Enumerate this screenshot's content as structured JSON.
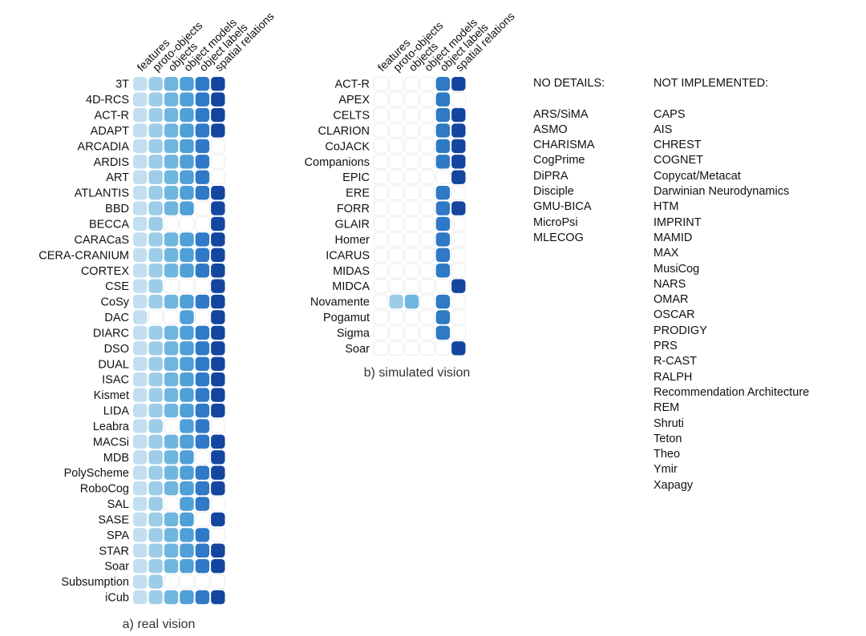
{
  "chart_data": [
    {
      "type": "heatmap",
      "caption": "a) real vision",
      "columns": [
        "features",
        "proto-objects",
        "objects",
        "object models",
        "object labels",
        "spatial relations"
      ],
      "rows": [
        {
          "label": "3T",
          "values": [
            1,
            1,
            1,
            1,
            1,
            1
          ]
        },
        {
          "label": "4D-RCS",
          "values": [
            1,
            1,
            1,
            1,
            1,
            1
          ]
        },
        {
          "label": "ACT-R",
          "values": [
            1,
            1,
            1,
            1,
            1,
            1
          ]
        },
        {
          "label": "ADAPT",
          "values": [
            1,
            1,
            1,
            1,
            1,
            1
          ]
        },
        {
          "label": "ARCADIA",
          "values": [
            1,
            1,
            1,
            1,
            1,
            0
          ]
        },
        {
          "label": "ARDIS",
          "values": [
            1,
            1,
            1,
            1,
            1,
            0
          ]
        },
        {
          "label": "ART",
          "values": [
            1,
            1,
            1,
            1,
            1,
            0
          ]
        },
        {
          "label": "ATLANTIS",
          "values": [
            1,
            1,
            1,
            1,
            1,
            1
          ]
        },
        {
          "label": "BBD",
          "values": [
            1,
            1,
            1,
            1,
            0,
            1
          ]
        },
        {
          "label": "BECCA",
          "values": [
            1,
            1,
            0,
            0,
            0,
            1
          ]
        },
        {
          "label": "CARACaS",
          "values": [
            1,
            1,
            1,
            1,
            1,
            1
          ]
        },
        {
          "label": "CERA-CRANIUM",
          "values": [
            1,
            1,
            1,
            1,
            1,
            1
          ]
        },
        {
          "label": "CORTEX",
          "values": [
            1,
            1,
            1,
            1,
            1,
            1
          ]
        },
        {
          "label": "CSE",
          "values": [
            1,
            1,
            0,
            0,
            0,
            1
          ]
        },
        {
          "label": "CoSy",
          "values": [
            1,
            1,
            1,
            1,
            1,
            1
          ]
        },
        {
          "label": "DAC",
          "values": [
            1,
            0,
            0,
            1,
            0,
            1
          ]
        },
        {
          "label": "DIARC",
          "values": [
            1,
            1,
            1,
            1,
            1,
            1
          ]
        },
        {
          "label": "DSO",
          "values": [
            1,
            1,
            1,
            1,
            1,
            1
          ]
        },
        {
          "label": "DUAL",
          "values": [
            1,
            1,
            1,
            1,
            1,
            1
          ]
        },
        {
          "label": "ISAC",
          "values": [
            1,
            1,
            1,
            1,
            1,
            1
          ]
        },
        {
          "label": "Kismet",
          "values": [
            1,
            1,
            1,
            1,
            1,
            1
          ]
        },
        {
          "label": "LIDA",
          "values": [
            1,
            1,
            1,
            1,
            1,
            1
          ]
        },
        {
          "label": "Leabra",
          "values": [
            1,
            1,
            0,
            1,
            1,
            0
          ]
        },
        {
          "label": "MACSi",
          "values": [
            1,
            1,
            1,
            1,
            1,
            1
          ]
        },
        {
          "label": "MDB",
          "values": [
            1,
            1,
            1,
            1,
            0,
            1
          ]
        },
        {
          "label": "PolyScheme",
          "values": [
            1,
            1,
            1,
            1,
            1,
            1
          ]
        },
        {
          "label": "RoboCog",
          "values": [
            1,
            1,
            1,
            1,
            1,
            1
          ]
        },
        {
          "label": "SAL",
          "values": [
            1,
            1,
            0,
            1,
            1,
            0
          ]
        },
        {
          "label": "SASE",
          "values": [
            1,
            1,
            1,
            1,
            0,
            1
          ]
        },
        {
          "label": "SPA",
          "values": [
            1,
            1,
            1,
            1,
            1,
            0
          ]
        },
        {
          "label": "STAR",
          "values": [
            1,
            1,
            1,
            1,
            1,
            1
          ]
        },
        {
          "label": "Soar",
          "values": [
            1,
            1,
            1,
            1,
            1,
            1
          ]
        },
        {
          "label": "Subsumption",
          "values": [
            1,
            1,
            0,
            0,
            0,
            0
          ]
        },
        {
          "label": "iCub",
          "values": [
            1,
            1,
            1,
            1,
            1,
            1
          ]
        }
      ]
    },
    {
      "type": "heatmap",
      "caption": "b) simulated vision",
      "columns": [
        "features",
        "proto-objects",
        "objects",
        "object models",
        "object labels",
        "spatial relations"
      ],
      "rows": [
        {
          "label": "ACT-R",
          "values": [
            0,
            0,
            0,
            0,
            1,
            1
          ]
        },
        {
          "label": "APEX",
          "values": [
            0,
            0,
            0,
            0,
            1,
            0
          ]
        },
        {
          "label": "CELTS",
          "values": [
            0,
            0,
            0,
            0,
            1,
            1
          ]
        },
        {
          "label": "CLARION",
          "values": [
            0,
            0,
            0,
            0,
            1,
            1
          ]
        },
        {
          "label": "CoJACK",
          "values": [
            0,
            0,
            0,
            0,
            1,
            1
          ]
        },
        {
          "label": "Companions",
          "values": [
            0,
            0,
            0,
            0,
            1,
            1
          ]
        },
        {
          "label": "EPIC",
          "values": [
            0,
            0,
            0,
            0,
            0,
            1
          ]
        },
        {
          "label": "ERE",
          "values": [
            0,
            0,
            0,
            0,
            1,
            0
          ]
        },
        {
          "label": "FORR",
          "values": [
            0,
            0,
            0,
            0,
            1,
            1
          ]
        },
        {
          "label": "GLAIR",
          "values": [
            0,
            0,
            0,
            0,
            1,
            0
          ]
        },
        {
          "label": "Homer",
          "values": [
            0,
            0,
            0,
            0,
            1,
            0
          ]
        },
        {
          "label": "ICARUS",
          "values": [
            0,
            0,
            0,
            0,
            1,
            0
          ]
        },
        {
          "label": "MIDAS",
          "values": [
            0,
            0,
            0,
            0,
            1,
            0
          ]
        },
        {
          "label": "MIDCA",
          "values": [
            0,
            0,
            0,
            0,
            0,
            1
          ]
        },
        {
          "label": "Novamente",
          "values": [
            0,
            1,
            1,
            0,
            1,
            0
          ]
        },
        {
          "label": "Pogamut",
          "values": [
            0,
            0,
            0,
            0,
            1,
            0
          ]
        },
        {
          "label": "Sigma",
          "values": [
            0,
            0,
            0,
            0,
            1,
            0
          ]
        },
        {
          "label": "Soar",
          "values": [
            0,
            0,
            0,
            0,
            0,
            1
          ]
        }
      ]
    }
  ],
  "colors": {
    "levels": [
      "#c2dff0",
      "#9ccde8",
      "#6fb6df",
      "#4f9fd8",
      "#2f79c6",
      "#1446a0"
    ],
    "empty_stroke": "#ebebeb"
  },
  "no_details": {
    "header": "NO DETAILS:",
    "items": [
      "ARS/SiMA",
      "ASMO",
      "CHARISMA",
      "CogPrime",
      "DiPRA",
      "Disciple",
      "GMU-BICA",
      "MicroPsi",
      "MLECOG"
    ]
  },
  "not_implemented": {
    "header": "NOT IMPLEMENTED:",
    "items": [
      "CAPS",
      "AIS",
      "CHREST",
      "COGNET",
      "Copycat/Metacat",
      "Darwinian Neurodynamics",
      "HTM",
      "IMPRINT",
      "MAMID",
      "MAX",
      "MusiCog",
      "NARS",
      "OMAR",
      "OSCAR",
      "PRODIGY",
      "PRS",
      "R-CAST",
      "RALPH",
      "Recommendation Architecture",
      "REM",
      "Shruti",
      "Teton",
      "Theo",
      "Ymir",
      "Xapagy"
    ]
  }
}
